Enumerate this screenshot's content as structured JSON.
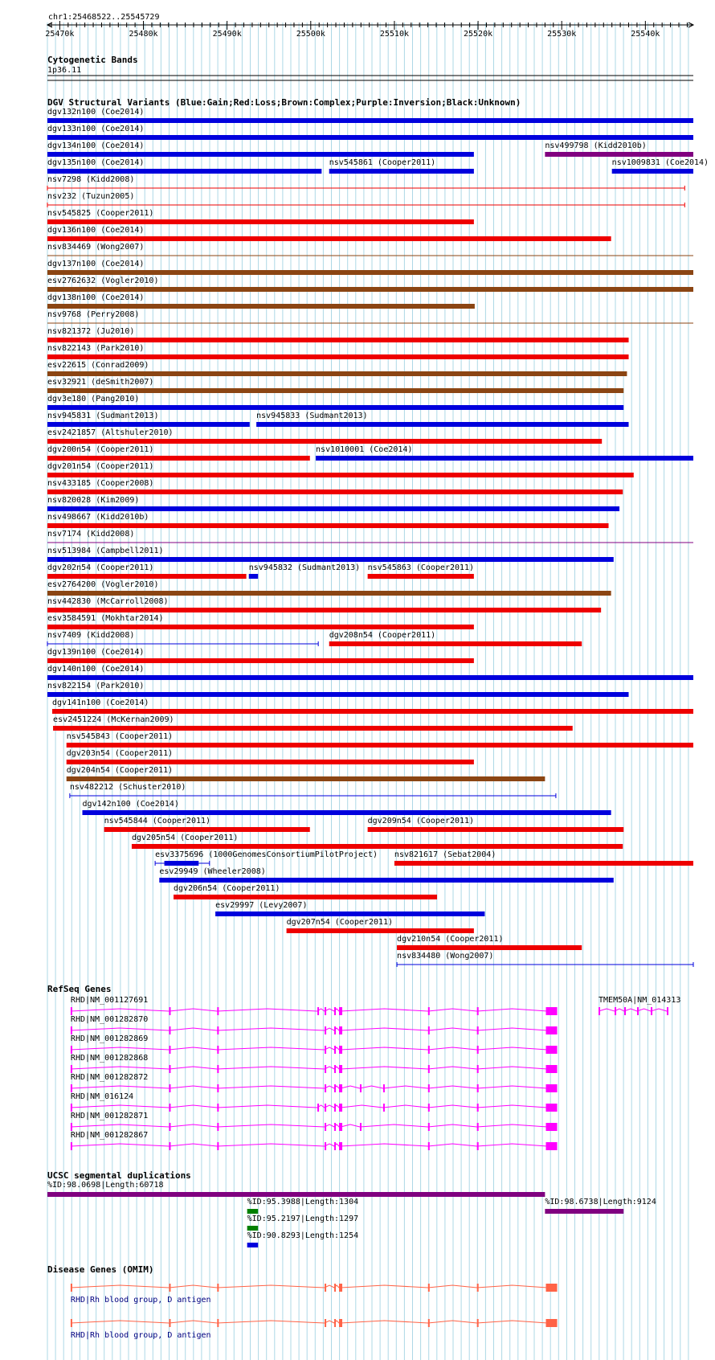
{
  "ruler": {
    "position_label": "chr1:25468522..25545729",
    "range": [
      25468522,
      25545729
    ],
    "ticks": [
      "25470k",
      "25480k",
      "25490k",
      "25500k",
      "25510k",
      "25520k",
      "25530k",
      "25540k"
    ],
    "tick_values": [
      25470000,
      25480000,
      25490000,
      25500000,
      25510000,
      25520000,
      25530000,
      25540000
    ]
  },
  "colors": {
    "gain": "#0000dd",
    "loss": "#ee0000",
    "complex": "#8b4513",
    "inversion": "#800080",
    "refseq": "#ff00ff",
    "segdup_high": "#800080",
    "segdup_mid": "#008000",
    "segdup_low": "#0000dd",
    "omim": "#ff6347",
    "grid": "#add8e6"
  },
  "tracks": {
    "cyto": {
      "title": "Cytogenetic Bands",
      "band": "1p36.11"
    },
    "dgv": {
      "title": "DGV Structural Variants (Blue:Gain;Red:Loss;Brown:Complex;Purple:Inversion;Black:Unknown)",
      "rows": [
        [
          {
            "label": "dgv132n100 (Coe2014)",
            "type": "gain",
            "start": 25468522,
            "end": 25545729
          }
        ],
        [
          {
            "label": "dgv133n100 (Coe2014)",
            "type": "gain",
            "start": 25468522,
            "end": 25545729
          }
        ],
        [
          {
            "label": "dgv134n100 (Coe2014)",
            "type": "gain",
            "start": 25468522,
            "end": 25519500
          },
          {
            "label": "nsv499798 (Kidd2010b)",
            "type": "inversion",
            "start": 25528000,
            "end": 25545729
          }
        ],
        [
          {
            "label": "dgv135n100 (Coe2014)",
            "type": "gain",
            "start": 25468522,
            "end": 25501300
          },
          {
            "label": "nsv545861 (Cooper2011)",
            "type": "gain",
            "start": 25502200,
            "end": 25519500
          },
          {
            "label": "nsv1009831 (Coe2014)",
            "type": "gain",
            "start": 25536000,
            "end": 25545729
          }
        ],
        [
          {
            "label": "nsv7298 (Kidd2008)",
            "type": "loss",
            "start": 25468522,
            "end": 25544700,
            "thin": true,
            "endcap": true
          }
        ],
        [
          {
            "label": "nsv232 (Tuzun2005)",
            "type": "loss",
            "start": 25468522,
            "end": 25544700,
            "thin": true,
            "endcap": true
          }
        ],
        [
          {
            "label": "nsv545825 (Cooper2011)",
            "type": "loss",
            "start": 25468522,
            "end": 25519500
          }
        ],
        [
          {
            "label": "dgv136n100 (Coe2014)",
            "type": "loss",
            "start": 25468522,
            "end": 25535900
          }
        ],
        [
          {
            "label": "nsv834469 (Wong2007)",
            "type": "complex",
            "start": 25468522,
            "end": 25545729,
            "thin": true
          }
        ],
        [
          {
            "label": "dgv137n100 (Coe2014)",
            "type": "complex",
            "start": 25468522,
            "end": 25545729
          }
        ],
        [
          {
            "label": "esv2762632 (Vogler2010)",
            "type": "complex",
            "start": 25468522,
            "end": 25545729
          }
        ],
        [
          {
            "label": "dgv138n100 (Coe2014)",
            "type": "complex",
            "start": 25468522,
            "end": 25519600
          }
        ],
        [
          {
            "label": "nsv9768 (Perry2008)",
            "type": "complex",
            "start": 25468522,
            "end": 25545729,
            "thin": true
          }
        ],
        [
          {
            "label": "nsv821372 (Ju2010)",
            "type": "loss",
            "start": 25468522,
            "end": 25538000
          }
        ],
        [
          {
            "label": "nsv822143 (Park2010)",
            "type": "loss",
            "start": 25468522,
            "end": 25538000
          }
        ],
        [
          {
            "label": "esv22615 (Conrad2009)",
            "type": "complex",
            "start": 25468522,
            "end": 25537800
          }
        ],
        [
          {
            "label": "esv32921 (deSmith2007)",
            "type": "complex",
            "start": 25468522,
            "end": 25537400
          }
        ],
        [
          {
            "label": "dgv3e180 (Pang2010)",
            "type": "gain",
            "start": 25468522,
            "end": 25537400
          }
        ],
        [
          {
            "label": "nsv945831 (Sudmant2013)",
            "type": "gain",
            "start": 25468522,
            "end": 25492700
          },
          {
            "label": "nsv945833 (Sudmant2013)",
            "type": "gain",
            "start": 25493500,
            "end": 25538000
          }
        ],
        [
          {
            "label": "esv2421857 (Altshuler2010)",
            "type": "loss",
            "start": 25468522,
            "end": 25534800
          }
        ],
        [
          {
            "label": "dgv200n54 (Cooper2011)",
            "type": "loss",
            "start": 25468522,
            "end": 25499900
          },
          {
            "label": "nsv1010001 (Coe2014)",
            "type": "gain",
            "start": 25500600,
            "end": 25545729
          }
        ],
        [
          {
            "label": "dgv201n54 (Cooper2011)",
            "type": "loss",
            "start": 25468522,
            "end": 25538600
          }
        ],
        [
          {
            "label": "nsv433185 (Cooper2008)",
            "type": "loss",
            "start": 25468522,
            "end": 25537300
          }
        ],
        [
          {
            "label": "nsv820028 (Kim2009)",
            "type": "gain",
            "start": 25468522,
            "end": 25536900
          }
        ],
        [
          {
            "label": "nsv498667 (Kidd2010b)",
            "type": "loss",
            "start": 25468522,
            "end": 25535600
          }
        ],
        [
          {
            "label": "nsv7174 (Kidd2008)",
            "type": "inversion",
            "start": 25468522,
            "end": 25545729,
            "thin": true
          }
        ],
        [
          {
            "label": "nsv513984 (Campbell2011)",
            "type": "gain",
            "start": 25468522,
            "end": 25536200
          }
        ],
        [
          {
            "label": "dgv202n54 (Cooper2011)",
            "type": "loss",
            "start": 25468522,
            "end": 25492300
          },
          {
            "label": "nsv945832 (Sudmant2013)",
            "type": "gain",
            "start": 25492600,
            "end": 25493700
          },
          {
            "label": "nsv545863 (Cooper2011)",
            "type": "loss",
            "start": 25506800,
            "end": 25519500
          }
        ],
        [
          {
            "label": "esv2764200 (Vogler2010)",
            "type": "complex",
            "start": 25468522,
            "end": 25535900
          }
        ],
        [
          {
            "label": "nsv442830 (McCarroll2008)",
            "type": "loss",
            "start": 25468522,
            "end": 25534700
          }
        ],
        [
          {
            "label": "esv3584591 (Mokhtar2014)",
            "type": "loss",
            "start": 25468522,
            "end": 25519500
          }
        ],
        [
          {
            "label": "nsv7409 (Kidd2008)",
            "type": "gain",
            "start": 25468522,
            "end": 25500900,
            "thin": true,
            "endcap": true
          },
          {
            "label": "dgv208n54 (Cooper2011)",
            "type": "loss",
            "start": 25502200,
            "end": 25532400
          }
        ],
        [
          {
            "label": "dgv139n100 (Coe2014)",
            "type": "loss",
            "start": 25468522,
            "end": 25519500
          }
        ],
        [
          {
            "label": "dgv140n100 (Coe2014)",
            "type": "gain",
            "start": 25468522,
            "end": 25545729
          }
        ],
        [
          {
            "label": "nsv822154 (Park2010)",
            "type": "gain",
            "start": 25468522,
            "end": 25538000
          }
        ],
        [
          {
            "label": "dgv141n100 (Coe2014)",
            "type": "loss",
            "start": 25469100,
            "end": 25545729
          }
        ],
        [
          {
            "label": "esv2451224 (McKernan2009)",
            "type": "loss",
            "start": 25469200,
            "end": 25531300
          }
        ],
        [
          {
            "label": "nsv545843 (Cooper2011)",
            "type": "loss",
            "start": 25470800,
            "end": 25545729
          }
        ],
        [
          {
            "label": "dgv203n54 (Cooper2011)",
            "type": "loss",
            "start": 25470800,
            "end": 25519500
          }
        ],
        [
          {
            "label": "dgv204n54 (Cooper2011)",
            "type": "complex",
            "start": 25470800,
            "end": 25528000
          }
        ],
        [
          {
            "label": "nsv482212 (Schuster2010)",
            "type": "gain",
            "start": 25471200,
            "end": 25529300,
            "thin": true,
            "endcap": true
          }
        ],
        [
          {
            "label": "dgv142n100 (Coe2014)",
            "type": "gain",
            "start": 25472700,
            "end": 25535900
          }
        ],
        [
          {
            "label": "nsv545844 (Cooper2011)",
            "type": "loss",
            "start": 25475300,
            "end": 25499900
          },
          {
            "label": "dgv209n54 (Cooper2011)",
            "type": "loss",
            "start": 25506800,
            "end": 25537400
          }
        ],
        [
          {
            "label": "dgv205n54 (Cooper2011)",
            "type": "loss",
            "start": 25478600,
            "end": 25537300
          }
        ],
        [
          {
            "label": "esv3375696 (1000GenomesConsortiumPilotProject)",
            "type": "gain",
            "start": 25481400,
            "end": 25487900,
            "thin": true,
            "endcap": true,
            "inner_start": 25482500,
            "inner_end": 25486600
          },
          {
            "label": "nsv821617 (Sebat2004)",
            "type": "loss",
            "start": 25510000,
            "end": 25545729
          }
        ],
        [
          {
            "label": "esv29949 (Wheeler2008)",
            "type": "gain",
            "start": 25481900,
            "end": 25536200
          }
        ],
        [
          {
            "label": "dgv206n54 (Cooper2011)",
            "type": "loss",
            "start": 25483600,
            "end": 25515100
          }
        ],
        [
          {
            "label": "esv29997 (Levy2007)",
            "type": "gain",
            "start": 25488600,
            "end": 25520800
          }
        ],
        [
          {
            "label": "dgv207n54 (Cooper2011)",
            "type": "loss",
            "start": 25497100,
            "end": 25519500
          }
        ],
        [
          {
            "label": "dgv210n54 (Cooper2011)",
            "type": "loss",
            "start": 25510300,
            "end": 25532400
          }
        ],
        [
          {
            "label": "nsv834480 (Wong2007)",
            "type": "gain",
            "start": 25510300,
            "end": 25545729,
            "thin": true,
            "endcap": true
          }
        ]
      ]
    },
    "refseq": {
      "title": "RefSeq Genes",
      "genes": [
        {
          "label": "RHD|NM_001127691",
          "variant": 0
        },
        {
          "label": "RHD|NM_001282870",
          "variant": 1
        },
        {
          "label": "RHD|NM_001282869",
          "variant": 1
        },
        {
          "label": "RHD|NM_001282868",
          "variant": 1
        },
        {
          "label": "RHD|NM_001282872",
          "variant": 2
        },
        {
          "label": "RHD|NM_016124",
          "variant": 3
        },
        {
          "label": "RHD|NM_001282871",
          "variant": 4
        },
        {
          "label": "RHD|NM_001282867",
          "variant": 1
        }
      ],
      "tmem": {
        "label": "TMEM50A|NM_014313"
      }
    },
    "segdup": {
      "title": "UCSC segmental duplications",
      "items": [
        {
          "label": "%ID:98.0698|Length:60718",
          "color_key": "segdup_high",
          "start": 25468522,
          "end": 25528000
        },
        {
          "label": "%ID:95.3988|Length:1304",
          "color_key": "segdup_mid",
          "start": 25492400,
          "end": 25493700
        },
        {
          "label": "%ID:98.6738|Length:9124",
          "color_key": "segdup_high",
          "start": 25528000,
          "end": 25537400
        },
        {
          "label": "%ID:95.2197|Length:1297",
          "color_key": "segdup_mid",
          "start": 25492400,
          "end": 25493700
        },
        {
          "label": "%ID:90.8293|Length:1254",
          "color_key": "segdup_low",
          "start": 25492400,
          "end": 25493700
        }
      ]
    },
    "omim": {
      "title": "Disease Genes (OMIM)",
      "genes": [
        {
          "label": "RHD|Rh blood group, D antigen"
        },
        {
          "label": "RHD|Rh blood group, D antigen"
        }
      ]
    }
  }
}
